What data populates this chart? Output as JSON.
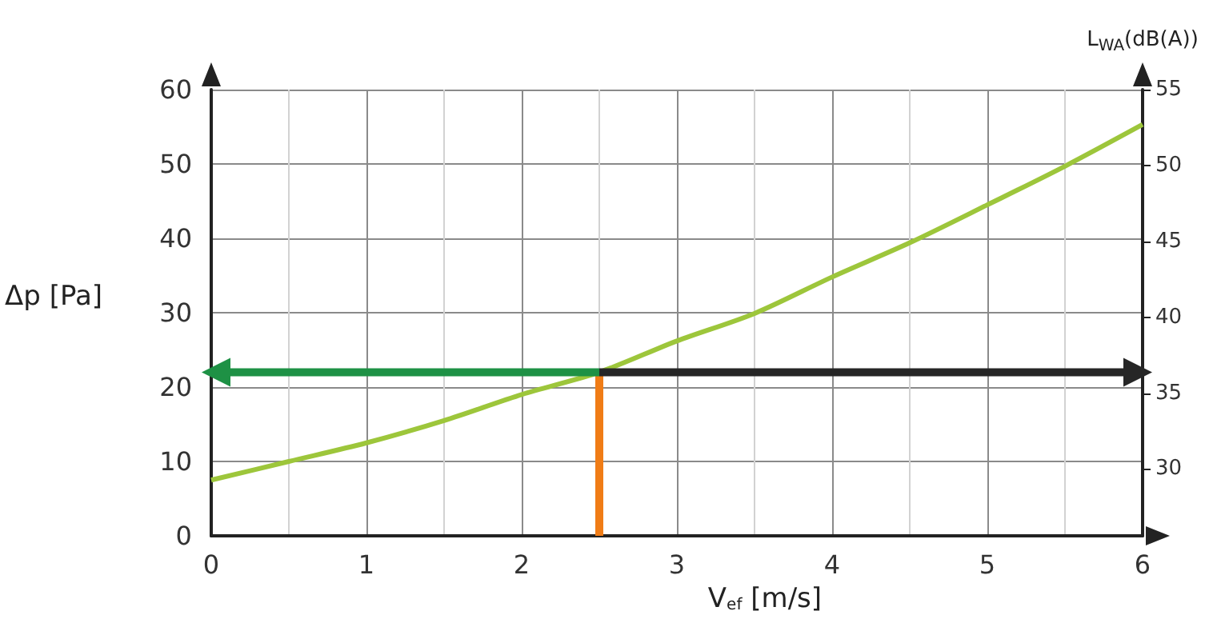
{
  "chart_data": {
    "type": "line",
    "xlabel": "V$_{ef}$ [m/s]",
    "ylabel": "Δp [Pa]",
    "y2label": "L$_{WA}$(dB(A))",
    "xlim": [
      0,
      6
    ],
    "xticks": [
      0,
      1,
      2,
      3,
      4,
      5,
      6
    ],
    "ylim": [
      0,
      60
    ],
    "yticks": [
      0,
      10,
      20,
      30,
      40,
      50,
      60
    ],
    "y2lim": [
      25.6,
      55
    ],
    "y2ticks": [
      30,
      35,
      40,
      45,
      50,
      55
    ],
    "grid": true,
    "marker": "none",
    "line_style": "solid",
    "series": [
      {
        "color": "#9dc63b",
        "x": [
          0,
          0.5,
          1,
          1.5,
          2,
          2.5,
          3,
          3.5,
          4,
          4.5,
          5,
          5.5,
          6
        ],
        "values": [
          7.5,
          10,
          12.5,
          15.5,
          19,
          22,
          26.2,
          29.9,
          34.8,
          39.4,
          44.5,
          49.7,
          55.3
        ]
      },
      {
        "color": "#f07c16",
        "x": [
          2.5,
          2.5
        ],
        "values": [
          0,
          22
        ]
      }
    ]
  }
}
